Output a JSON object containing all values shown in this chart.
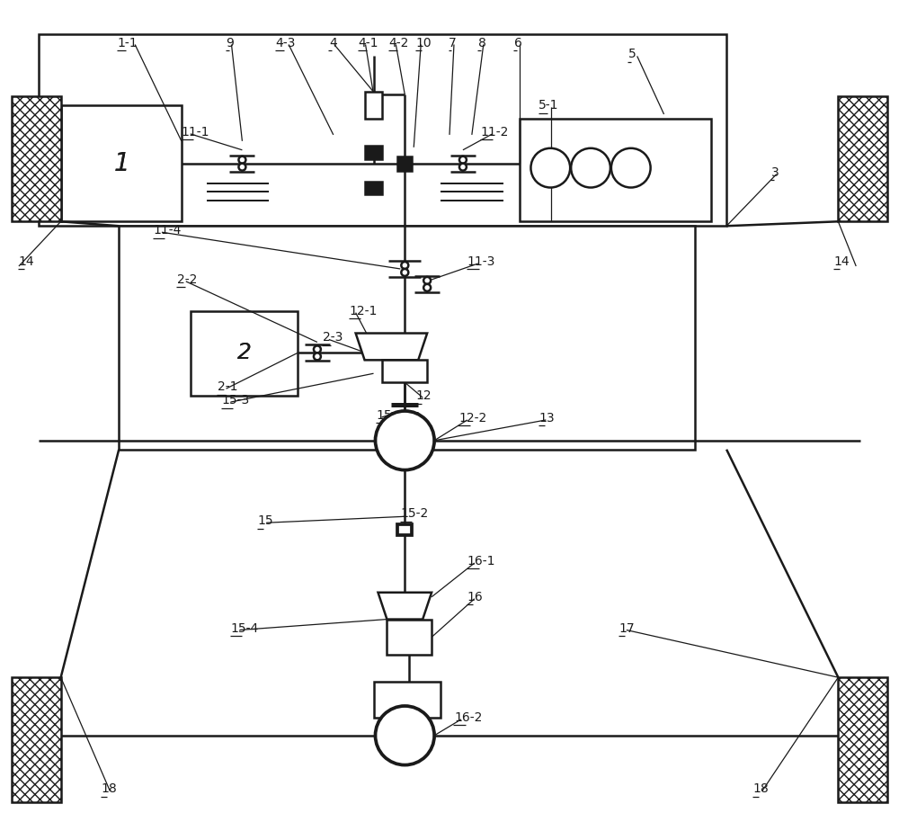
{
  "bg_color": "#ffffff",
  "line_color": "#1a1a1a",
  "lw": 1.8,
  "fig_w": 10.0,
  "fig_h": 9.14
}
